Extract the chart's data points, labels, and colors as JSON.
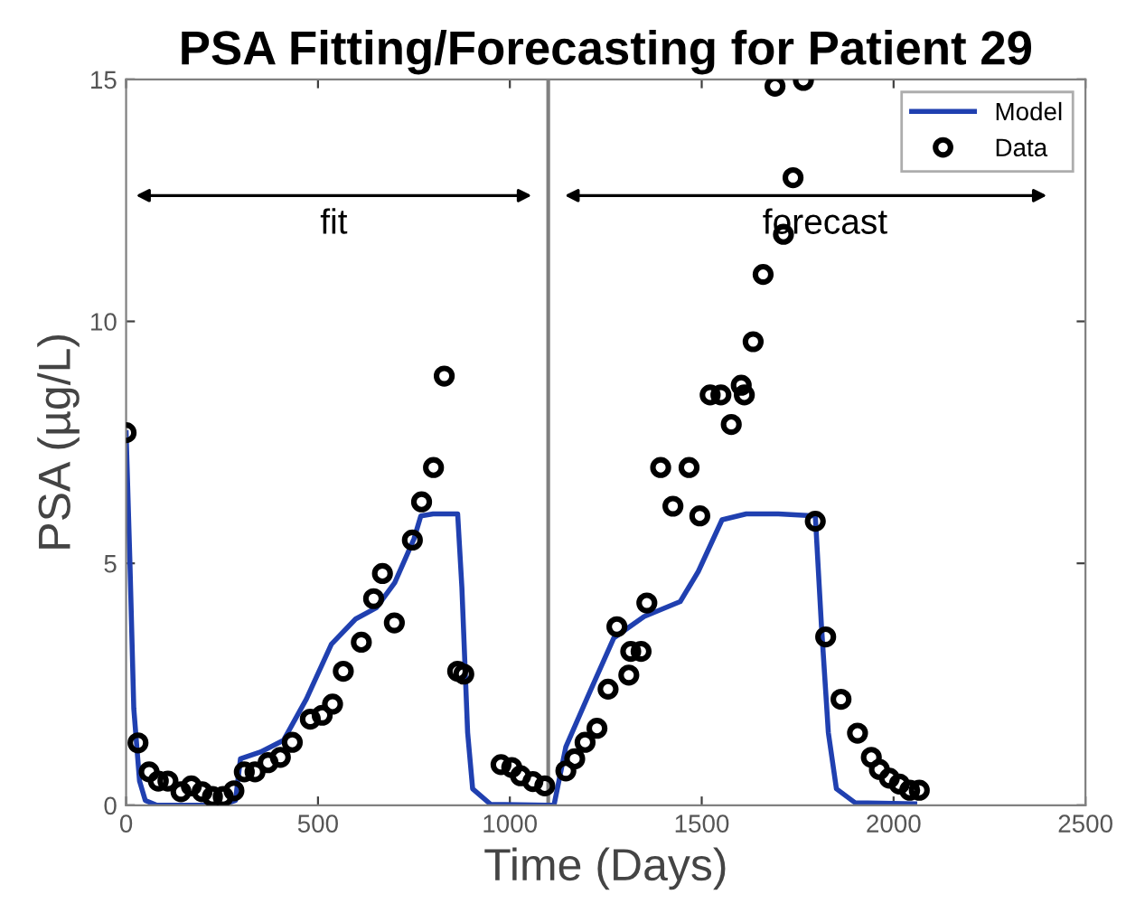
{
  "chart_data": {
    "type": "line",
    "title": "PSA Fitting/Forecasting for Patient 29",
    "xlabel": "Time (Days)",
    "ylabel": "PSA (µg/L)",
    "xlim": [
      0,
      2500
    ],
    "ylim": [
      0,
      15
    ],
    "xticks": [
      0,
      500,
      1000,
      1500,
      2000,
      2500
    ],
    "yticks": [
      0,
      5,
      10,
      15
    ],
    "grid": false,
    "legend": "top right",
    "series": [
      {
        "name": "Model",
        "color": "#2040b0",
        "marker": "none",
        "line_style": "solid",
        "x": [
          0,
          10,
          20,
          35,
          50,
          80,
          150,
          250,
          285,
          298,
          350,
          410,
          470,
          535,
          598,
          652,
          700,
          750,
          768,
          800,
          864,
          875,
          890,
          903,
          950,
          1100,
          1115,
          1146,
          1201,
          1271,
          1350,
          1444,
          1491,
          1553,
          1616,
          1700,
          1796,
          1812,
          1830,
          1851,
          1900,
          2055
        ],
        "values": [
          7.7,
          5.0,
          2.0,
          0.5,
          0.1,
          0.0,
          0.0,
          0.0,
          0.1,
          0.96,
          1.1,
          1.34,
          2.2,
          3.33,
          3.85,
          4.08,
          4.6,
          5.5,
          5.98,
          6.02,
          6.02,
          4.5,
          1.5,
          0.34,
          0.02,
          0.0,
          0.0,
          1.21,
          2.21,
          3.46,
          3.9,
          4.21,
          4.83,
          5.9,
          6.02,
          6.02,
          5.98,
          3.71,
          1.5,
          0.34,
          0.05,
          0.03
        ]
      },
      {
        "name": "Data",
        "type": "scatter",
        "color": "#000000",
        "marker": "circle",
        "x": [
          0,
          31,
          60,
          84,
          109,
          143,
          170,
          198,
          225,
          253,
          281,
          308,
          336,
          370,
          402,
          433,
          480,
          511,
          538,
          566,
          613,
          645,
          668,
          699,
          746,
          770,
          801,
          829,
          864,
          880,
          977,
          1005,
          1028,
          1060,
          1091,
          1146,
          1169,
          1196,
          1227,
          1256,
          1279,
          1310,
          1315,
          1342,
          1357,
          1393,
          1425,
          1467,
          1495,
          1522,
          1550,
          1577,
          1603,
          1611,
          1634,
          1660,
          1691,
          1713,
          1738,
          1765,
          1796,
          1823,
          1863,
          1906,
          1942,
          1963,
          1989,
          2015,
          2042,
          2067
        ],
        "values": [
          7.7,
          1.29,
          0.69,
          0.5,
          0.5,
          0.28,
          0.4,
          0.28,
          0.18,
          0.18,
          0.3,
          0.69,
          0.69,
          0.88,
          0.99,
          1.3,
          1.78,
          1.86,
          2.09,
          2.77,
          3.37,
          4.27,
          4.79,
          3.77,
          5.48,
          6.27,
          6.98,
          8.87,
          2.77,
          2.71,
          0.84,
          0.78,
          0.61,
          0.49,
          0.4,
          0.71,
          0.96,
          1.3,
          1.59,
          2.4,
          3.69,
          2.69,
          3.18,
          3.18,
          4.18,
          6.98,
          6.18,
          6.98,
          5.98,
          8.48,
          8.48,
          7.87,
          8.68,
          8.48,
          9.58,
          10.97,
          14.86,
          11.8,
          12.97,
          14.98,
          5.87,
          3.48,
          2.19,
          1.49,
          0.99,
          0.74,
          0.56,
          0.44,
          0.31,
          0.31
        ]
      }
    ],
    "ref_lines": [
      {
        "axis": "x",
        "value": 1100,
        "color": "#808080",
        "line_style": "solid"
      }
    ],
    "annotations": [
      "fit",
      "forecast"
    ]
  }
}
